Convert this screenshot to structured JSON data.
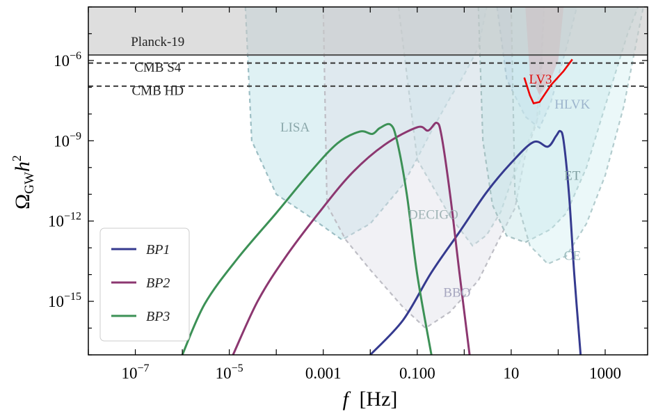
{
  "chart_data": {
    "type": "line",
    "xlabel_var": "f",
    "xlabel_unit": "[Hz]",
    "ylabel_main": "Ω",
    "ylabel_sub": "GW",
    "ylabel_tail": "h",
    "ylabel_sup": "2",
    "x_scale": "log",
    "y_scale": "log",
    "xlim": [
      1e-08,
      8000
    ],
    "ylim": [
      1e-17,
      0.0001
    ],
    "x_ticks": [
      {
        "value": 1e-07,
        "label": "10",
        "exp": "−7"
      },
      {
        "value": 1e-05,
        "label": "10",
        "exp": "−5"
      },
      {
        "value": 0.001,
        "label": "0.001",
        "exp": ""
      },
      {
        "value": 0.1,
        "label": "0.100",
        "exp": ""
      },
      {
        "value": 10,
        "label": "10",
        "exp": ""
      },
      {
        "value": 1000,
        "label": "1000",
        "exp": ""
      }
    ],
    "y_ticks": [
      {
        "value": 1e-06,
        "label": "10",
        "exp": "−6"
      },
      {
        "value": 1e-09,
        "label": "10",
        "exp": "−9"
      },
      {
        "value": 1e-12,
        "label": "10",
        "exp": "−12"
      },
      {
        "value": 1e-15,
        "label": "10",
        "exp": "−15"
      }
    ],
    "bounds": [
      {
        "name": "Planck-19",
        "y": 1.6e-06,
        "style": "solid",
        "shaded": true,
        "label_x": 3e-07,
        "label_y": 3.5e-06
      },
      {
        "name": "CMB S4",
        "y": 8e-07,
        "style": "dashed",
        "label_x": 3e-07,
        "label_y": 3.8e-07
      },
      {
        "name": "CMB HD",
        "y": 1.1e-07,
        "style": "dashed",
        "label_x": 3e-07,
        "label_y": 5.2e-08
      }
    ],
    "sensitivity_regions": [
      {
        "name": "LISA",
        "color": "#b8e0e6",
        "points": [
          [
            2.2e-05,
            0.0001
          ],
          [
            3e-05,
            1e-09
          ],
          [
            0.0001,
            1e-11
          ],
          [
            0.0005,
            1.5e-12
          ],
          [
            0.0025,
            2e-13
          ],
          [
            0.01,
            8e-13
          ],
          [
            0.05,
            2.3e-11
          ],
          [
            0.1,
            2.2e-10
          ],
          [
            0.2,
            2.3e-09
          ],
          [
            0.5,
            4e-08
          ],
          [
            1,
            3e-07
          ],
          [
            2,
            3e-06
          ],
          [
            3,
            0.0001
          ]
        ],
        "label": {
          "text": "LISA",
          "x": 0.00025,
          "y": 2.2e-09
        },
        "label_color": "#8aa7aa"
      },
      {
        "name": "DECIGO",
        "color": "#c8e8ea",
        "points": [
          [
            0.04,
            0.0001
          ],
          [
            0.1,
            2e-10
          ],
          [
            0.5,
            1.5e-12
          ],
          [
            1.5,
            1.2e-13
          ],
          [
            3,
            3e-13
          ],
          [
            6,
            2.2e-12
          ],
          [
            10,
            3e-11
          ],
          [
            20,
            5e-10
          ],
          [
            30,
            3e-09
          ],
          [
            40,
            1e-08
          ],
          [
            50,
            0.0001
          ]
        ],
        "label": {
          "text": "DECIGO",
          "x": 0.22,
          "y": 1.2e-12
        },
        "label_color": "#9fb3b5"
      },
      {
        "name": "BBO",
        "color": "#dfdfe8",
        "points": [
          [
            0.001,
            0.0001
          ],
          [
            0.0012,
            4e-12
          ],
          [
            0.003,
            2e-13
          ],
          [
            0.01,
            1.5e-14
          ],
          [
            0.05,
            6e-16
          ],
          [
            0.15,
            1e-16
          ],
          [
            0.5,
            4e-16
          ],
          [
            2,
            6e-15
          ],
          [
            5,
            1.5e-13
          ],
          [
            12,
            3e-12
          ],
          [
            20,
            3e-10
          ],
          [
            35,
            5e-09
          ],
          [
            50,
            0.0001
          ]
        ],
        "label": {
          "text": "BBO",
          "x": 0.7,
          "y": 1.5e-15
        },
        "label_color": "#a6a6bf"
      },
      {
        "name": "HLVK",
        "color": "#bcd4ea",
        "points": [
          [
            5,
            0.0001
          ],
          [
            8,
            2e-07
          ],
          [
            20,
            8e-09
          ],
          [
            40,
            3e-09
          ],
          [
            70,
            2.8e-08
          ],
          [
            150,
            3e-06
          ],
          [
            250,
            0.0001
          ]
        ],
        "label": {
          "text": "HLVK",
          "x": 200,
          "y": 1.6e-08
        },
        "label_color": "#9cb4cc"
      },
      {
        "name": "ET",
        "color": "#c4e4e6",
        "points": [
          [
            2,
            0.0001
          ],
          [
            2.5,
            1e-09
          ],
          [
            4,
            4e-12
          ],
          [
            8,
            2.8e-13
          ],
          [
            20,
            1.6e-13
          ],
          [
            70,
            5e-13
          ],
          [
            150,
            2e-12
          ],
          [
            400,
            1e-10
          ],
          [
            1000,
            2e-08
          ],
          [
            3000,
            1e-05
          ],
          [
            5000,
            0.0001
          ]
        ],
        "label": {
          "text": "ET",
          "x": 200,
          "y": 3.5e-11
        },
        "label_color": "#7f9fa1"
      },
      {
        "name": "CE",
        "color": "#d2f0f2",
        "points": [
          [
            10,
            0.0001
          ],
          [
            12,
            1e-11
          ],
          [
            25,
            1.2e-13
          ],
          [
            60,
            2.5e-14
          ],
          [
            150,
            5e-14
          ],
          [
            400,
            8e-13
          ],
          [
            1000,
            5e-11
          ],
          [
            2500,
            2e-08
          ],
          [
            5000,
            1e-05
          ],
          [
            6500,
            0.0001
          ]
        ],
        "label": {
          "text": "CE",
          "x": 200,
          "y": 3.5e-14
        },
        "label_color": "#9cbcbe"
      },
      {
        "name": "LV3",
        "color": "#d8a6ae",
        "points": [
          [
            20,
            0.0001
          ],
          [
            25,
            3e-07
          ],
          [
            40,
            5e-08
          ],
          [
            70,
            2e-07
          ],
          [
            100,
            1e-06
          ],
          [
            130,
            0.0001
          ]
        ],
        "label": {
          "text": "LV3",
          "x": 42,
          "y": 1.4e-07
        },
        "label_color": "#e00000"
      }
    ],
    "lv3_curve": [
      [
        19,
        2.3e-07
      ],
      [
        25,
        5e-08
      ],
      [
        30,
        2.5e-08
      ],
      [
        40,
        2.8e-08
      ],
      [
        70,
        1.2e-07
      ],
      [
        130,
        4e-07
      ],
      [
        200,
        1.1e-06
      ]
    ],
    "series": [
      {
        "name": "BP1",
        "color": "#353a8f",
        "points": [
          [
            0.01,
            1e-17
          ],
          [
            0.05,
            2e-16
          ],
          [
            0.2,
            1.2e-14
          ],
          [
            0.8,
            4e-13
          ],
          [
            3,
            1.2e-11
          ],
          [
            10,
            1.5e-10
          ],
          [
            30,
            9e-10
          ],
          [
            60,
            6e-10
          ],
          [
            90,
            1.5e-09
          ],
          [
            110,
            2.3e-09
          ],
          [
            130,
            1e-09
          ],
          [
            170,
            1e-11
          ],
          [
            220,
            1e-14
          ],
          [
            300,
            1e-17
          ]
        ]
      },
      {
        "name": "BP2",
        "color": "#8c3770",
        "points": [
          [
            1.2e-05,
            1e-17
          ],
          [
            4e-05,
            1e-15
          ],
          [
            0.00015,
            4e-14
          ],
          [
            0.0008,
            2e-12
          ],
          [
            0.004,
            6e-11
          ],
          [
            0.02,
            7e-10
          ],
          [
            0.1,
            3.2e-09
          ],
          [
            0.17,
            2.4e-09
          ],
          [
            0.26,
            4.7e-09
          ],
          [
            0.33,
            1.5e-09
          ],
          [
            0.5,
            1e-11
          ],
          [
            0.8,
            1e-14
          ],
          [
            1.3,
            1e-17
          ]
        ]
      },
      {
        "name": "BP3",
        "color": "#3c9156",
        "points": [
          [
            1e-06,
            1e-17
          ],
          [
            3e-06,
            8e-16
          ],
          [
            1.5e-05,
            4e-14
          ],
          [
            0.0001,
            2e-12
          ],
          [
            0.0005,
            6e-11
          ],
          [
            0.002,
            8e-10
          ],
          [
            0.006,
            2.2e-09
          ],
          [
            0.011,
            1.8e-09
          ],
          [
            0.016,
            3e-09
          ],
          [
            0.027,
            4e-09
          ],
          [
            0.037,
            1e-09
          ],
          [
            0.06,
            1e-11
          ],
          [
            0.1,
            1e-14
          ],
          [
            0.2,
            1e-17
          ]
        ]
      }
    ],
    "legend": {
      "position": "bottom-left",
      "entries": [
        "BP1",
        "BP2",
        "BP3"
      ],
      "prefix": "BP",
      "suffix": [
        "1",
        "2",
        "3"
      ]
    },
    "grid": false
  }
}
